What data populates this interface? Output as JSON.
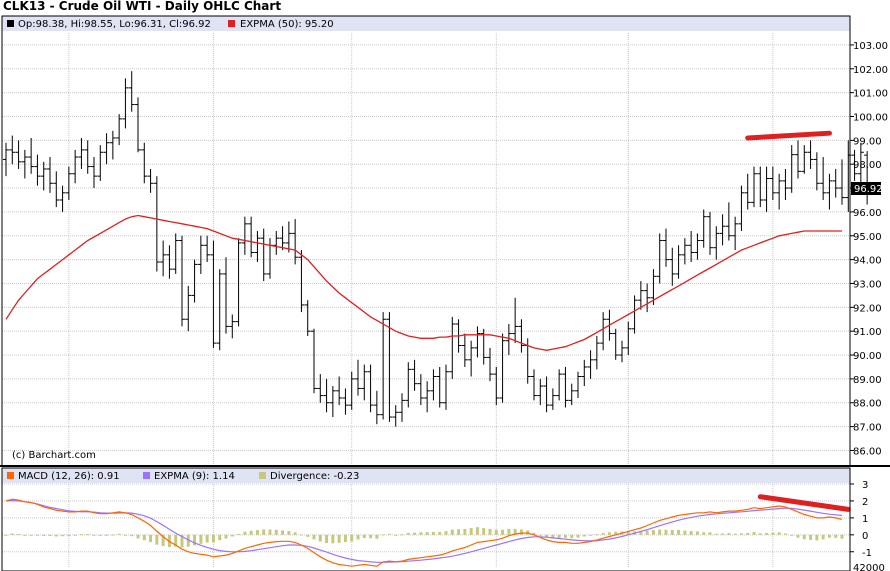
{
  "chart_data": [
    {
      "type": "ohlc",
      "title": "CLK13 - Crude Oil WTI - Daily OHLC Chart",
      "ohlc_label": "Op:98.38, Hi:98.55, Lo:96.31, Cl:96.92",
      "expma_label": "EXPMA (50): 95.20",
      "copyright": "(c) Barchart.com",
      "last_price_label": "96.92",
      "last_close": 96.92,
      "ylim": [
        85.6,
        103.5
      ],
      "y_ticks": [
        "86.00",
        "87.00",
        "88.00",
        "89.00",
        "90.00",
        "91.00",
        "92.00",
        "93.00",
        "94.00",
        "95.00",
        "96.00",
        "97.00",
        "98.00",
        "99.00",
        "100.00",
        "101.00",
        "102.00",
        "103.00"
      ],
      "grid": true,
      "n_bars": 134,
      "x_gridlines_at_bar": [
        10,
        33,
        55,
        78,
        99,
        122
      ],
      "bars": [
        [
          98.2,
          98.9,
          97.5,
          98.6
        ],
        [
          98.6,
          99.2,
          98.0,
          98.5
        ],
        [
          98.5,
          99.0,
          97.8,
          98.1
        ],
        [
          98.1,
          98.6,
          97.4,
          98.3
        ],
        [
          98.3,
          99.1,
          97.6,
          97.9
        ],
        [
          97.9,
          98.4,
          97.1,
          97.5
        ],
        [
          97.5,
          98.1,
          96.9,
          97.8
        ],
        [
          97.8,
          98.3,
          96.8,
          97.2
        ],
        [
          97.2,
          97.7,
          96.2,
          96.5
        ],
        [
          96.5,
          97.1,
          96.0,
          96.8
        ],
        [
          96.8,
          97.9,
          96.5,
          97.6
        ],
        [
          97.6,
          98.6,
          97.2,
          98.3
        ],
        [
          98.3,
          99.1,
          97.8,
          98.6
        ],
        [
          98.6,
          99.0,
          97.6,
          97.9
        ],
        [
          97.9,
          98.3,
          97.0,
          97.5
        ],
        [
          97.5,
          98.8,
          97.3,
          98.5
        ],
        [
          98.5,
          99.3,
          98.0,
          98.9
        ],
        [
          98.9,
          99.4,
          98.2,
          99.1
        ],
        [
          99.1,
          100.1,
          98.8,
          99.9
        ],
        [
          99.9,
          101.6,
          99.5,
          101.2
        ],
        [
          101.2,
          101.9,
          100.2,
          100.5
        ],
        [
          100.5,
          100.8,
          98.5,
          98.6
        ],
        [
          98.6,
          98.9,
          97.2,
          97.5
        ],
        [
          97.5,
          97.8,
          96.8,
          97.2
        ],
        [
          97.2,
          97.5,
          93.5,
          93.9
        ],
        [
          93.9,
          94.8,
          93.3,
          94.2
        ],
        [
          94.2,
          94.6,
          93.2,
          93.6
        ],
        [
          93.6,
          95.1,
          93.4,
          94.8
        ],
        [
          94.8,
          95.0,
          91.2,
          91.5
        ],
        [
          91.5,
          92.9,
          91.0,
          92.5
        ],
        [
          92.5,
          94.0,
          92.2,
          93.8
        ],
        [
          93.8,
          95.0,
          93.4,
          94.6
        ],
        [
          94.6,
          95.0,
          93.9,
          94.2
        ],
        [
          94.2,
          94.8,
          90.3,
          90.5
        ],
        [
          90.5,
          93.6,
          90.2,
          93.4
        ],
        [
          93.4,
          94.1,
          90.9,
          91.2
        ],
        [
          91.2,
          91.7,
          90.7,
          91.4
        ],
        [
          91.4,
          94.9,
          91.2,
          94.7
        ],
        [
          94.7,
          95.8,
          94.2,
          95.5
        ],
        [
          95.5,
          95.8,
          94.1,
          94.3
        ],
        [
          94.3,
          95.2,
          93.9,
          94.9
        ],
        [
          94.9,
          95.3,
          93.1,
          93.4
        ],
        [
          93.4,
          94.9,
          93.2,
          94.6
        ],
        [
          94.6,
          95.2,
          94.2,
          94.9
        ],
        [
          94.9,
          95.4,
          94.4,
          94.7
        ],
        [
          94.7,
          95.6,
          94.3,
          95.1
        ],
        [
          95.1,
          95.7,
          93.8,
          94.1
        ],
        [
          94.1,
          94.4,
          91.8,
          92.1
        ],
        [
          92.1,
          92.3,
          90.8,
          91.0
        ],
        [
          91.0,
          91.1,
          88.4,
          88.6
        ],
        [
          88.6,
          89.2,
          88.0,
          88.3
        ],
        [
          88.3,
          89.0,
          87.6,
          88.0
        ],
        [
          88.0,
          88.7,
          87.4,
          88.5
        ],
        [
          88.5,
          89.1,
          87.9,
          88.2
        ],
        [
          88.2,
          88.6,
          87.5,
          87.9
        ],
        [
          87.9,
          89.3,
          87.7,
          89.0
        ],
        [
          89.0,
          89.8,
          88.3,
          88.6
        ],
        [
          88.6,
          89.6,
          88.1,
          89.3
        ],
        [
          89.3,
          89.6,
          87.6,
          87.9
        ],
        [
          87.9,
          88.5,
          87.1,
          87.5
        ],
        [
          87.5,
          91.8,
          87.3,
          91.5
        ],
        [
          91.5,
          91.8,
          87.2,
          87.4
        ],
        [
          87.4,
          87.9,
          87.0,
          87.6
        ],
        [
          87.6,
          88.4,
          87.2,
          88.1
        ],
        [
          88.1,
          89.7,
          87.8,
          89.4
        ],
        [
          89.4,
          89.8,
          88.5,
          88.8
        ],
        [
          88.8,
          89.2,
          87.9,
          88.2
        ],
        [
          88.2,
          88.9,
          87.6,
          88.5
        ],
        [
          88.5,
          89.4,
          88.1,
          89.1
        ],
        [
          89.1,
          89.5,
          87.8,
          88.0
        ],
        [
          88.0,
          89.6,
          87.7,
          89.3
        ],
        [
          89.3,
          91.6,
          89.0,
          91.3
        ],
        [
          91.3,
          91.5,
          90.1,
          90.4
        ],
        [
          90.4,
          90.9,
          89.5,
          89.8
        ],
        [
          89.8,
          90.6,
          89.1,
          90.3
        ],
        [
          90.3,
          91.2,
          89.9,
          90.9
        ],
        [
          90.9,
          91.1,
          89.6,
          89.9
        ],
        [
          89.9,
          90.3,
          88.9,
          89.2
        ],
        [
          89.2,
          89.5,
          87.9,
          88.2
        ],
        [
          88.2,
          90.9,
          88.0,
          90.6
        ],
        [
          90.6,
          91.3,
          90.0,
          90.9
        ],
        [
          90.9,
          92.4,
          90.5,
          91.2
        ],
        [
          91.2,
          91.5,
          90.1,
          90.4
        ],
        [
          90.4,
          90.7,
          88.8,
          89.1
        ],
        [
          89.1,
          89.4,
          88.1,
          88.3
        ],
        [
          88.3,
          89.0,
          87.9,
          88.7
        ],
        [
          88.7,
          89.1,
          87.6,
          87.9
        ],
        [
          87.9,
          88.6,
          87.7,
          88.3
        ],
        [
          88.3,
          89.4,
          88.1,
          89.2
        ],
        [
          89.2,
          89.5,
          87.8,
          88.1
        ],
        [
          88.1,
          88.8,
          87.9,
          88.5
        ],
        [
          88.5,
          89.3,
          88.2,
          89.1
        ],
        [
          89.1,
          89.8,
          88.7,
          89.5
        ],
        [
          89.5,
          90.2,
          89.0,
          89.8
        ],
        [
          89.8,
          90.8,
          89.4,
          90.5
        ],
        [
          90.5,
          91.8,
          90.2,
          91.5
        ],
        [
          91.5,
          91.9,
          90.6,
          90.9
        ],
        [
          90.9,
          91.1,
          89.8,
          90.0
        ],
        [
          90.0,
          90.6,
          89.7,
          90.3
        ],
        [
          90.3,
          91.4,
          90.0,
          91.1
        ],
        [
          91.1,
          92.5,
          90.9,
          92.3
        ],
        [
          92.3,
          93.1,
          91.9,
          92.7
        ],
        [
          92.7,
          93.0,
          91.8,
          92.4
        ],
        [
          92.4,
          93.6,
          92.1,
          93.3
        ],
        [
          93.3,
          95.1,
          93.0,
          94.8
        ],
        [
          94.8,
          95.3,
          93.7,
          94.0
        ],
        [
          94.0,
          94.5,
          92.9,
          93.4
        ],
        [
          93.4,
          94.6,
          93.2,
          94.2
        ],
        [
          94.2,
          94.9,
          93.8,
          94.6
        ],
        [
          94.6,
          95.2,
          93.9,
          94.3
        ],
        [
          94.3,
          95.1,
          94.0,
          94.8
        ],
        [
          94.8,
          96.1,
          94.5,
          95.8
        ],
        [
          95.8,
          96.0,
          94.2,
          94.5
        ],
        [
          94.5,
          95.4,
          94.0,
          95.1
        ],
        [
          95.1,
          95.9,
          94.6,
          95.4
        ],
        [
          95.4,
          96.4,
          94.8,
          95.0
        ],
        [
          95.0,
          95.8,
          94.4,
          95.5
        ],
        [
          95.5,
          97.1,
          95.2,
          96.8
        ],
        [
          96.8,
          97.6,
          96.1,
          96.4
        ],
        [
          96.4,
          97.9,
          96.2,
          97.6
        ],
        [
          97.6,
          97.9,
          96.2,
          96.5
        ],
        [
          96.5,
          97.9,
          96.0,
          97.4
        ],
        [
          97.4,
          97.9,
          96.5,
          96.8
        ],
        [
          96.8,
          97.6,
          96.1,
          97.3
        ],
        [
          97.3,
          97.8,
          96.5,
          97.0
        ],
        [
          97.0,
          98.8,
          96.8,
          98.4
        ],
        [
          98.4,
          99.0,
          97.4,
          97.7
        ],
        [
          97.7,
          98.8,
          97.6,
          98.5
        ],
        [
          98.5,
          99.0,
          97.8,
          98.2
        ],
        [
          98.2,
          98.5,
          96.9,
          97.2
        ],
        [
          97.2,
          98.3,
          96.5,
          96.8
        ],
        [
          96.8,
          97.6,
          96.1,
          97.3
        ],
        [
          97.3,
          97.8,
          96.6,
          97.0
        ],
        [
          97.0,
          98.2,
          96.3,
          96.6
        ],
        [
          96.6,
          99.0,
          96.0,
          98.38
        ],
        [
          98.38,
          98.6,
          97.3,
          97.6
        ],
        [
          97.6,
          98.9,
          97.2,
          98.5
        ],
        [
          98.38,
          98.55,
          96.31,
          96.92
        ]
      ],
      "expma50": [
        91.5,
        91.9,
        92.3,
        92.6,
        92.9,
        93.2,
        93.4,
        93.6,
        93.8,
        94.0,
        94.2,
        94.4,
        94.6,
        94.8,
        94.95,
        95.1,
        95.25,
        95.4,
        95.55,
        95.7,
        95.8,
        95.85,
        95.8,
        95.75,
        95.7,
        95.65,
        95.6,
        95.55,
        95.5,
        95.45,
        95.4,
        95.35,
        95.3,
        95.2,
        95.1,
        95.0,
        94.9,
        94.85,
        94.8,
        94.75,
        94.7,
        94.65,
        94.6,
        94.55,
        94.5,
        94.45,
        94.4,
        94.2,
        94.0,
        93.7,
        93.4,
        93.1,
        92.85,
        92.6,
        92.4,
        92.2,
        92.0,
        91.8,
        91.6,
        91.45,
        91.3,
        91.15,
        91.0,
        90.9,
        90.8,
        90.75,
        90.7,
        90.7,
        90.7,
        90.75,
        90.75,
        90.8,
        90.8,
        90.85,
        90.85,
        90.85,
        90.85,
        90.85,
        90.8,
        90.75,
        90.7,
        90.6,
        90.5,
        90.4,
        90.3,
        90.25,
        90.2,
        90.25,
        90.3,
        90.35,
        90.45,
        90.55,
        90.65,
        90.8,
        90.95,
        91.1,
        91.25,
        91.4,
        91.55,
        91.7,
        91.85,
        92.0,
        92.15,
        92.3,
        92.45,
        92.6,
        92.75,
        92.9,
        93.05,
        93.2,
        93.35,
        93.5,
        93.65,
        93.8,
        93.95,
        94.1,
        94.25,
        94.4,
        94.5,
        94.6,
        94.7,
        94.8,
        94.9,
        95.0,
        95.05,
        95.1,
        95.15,
        95.2,
        95.2,
        95.2,
        95.2,
        95.2,
        95.2,
        95.2
      ],
      "annotation_resistance": {
        "x_bar": [
          118,
          131
        ],
        "y": [
          99.1,
          99.3
        ],
        "color": "#e02020"
      }
    },
    {
      "type": "line",
      "macd_label": "MACD (12, 26): 0.91",
      "signal_label": "EXPMA (9): 1.14",
      "divergence_label": "Divergence: -0.23",
      "ylim": [
        -1.9,
        3.0
      ],
      "y_ticks": [
        "-1",
        "0",
        "1",
        "2",
        "3"
      ],
      "bottom_clipped_label": "42000",
      "colors": {
        "macd": "#ff6600",
        "signal": "#9a73ff",
        "divergence": "#c8c87d",
        "annotation": "#e02020"
      },
      "macd": [
        2.0,
        2.1,
        2.05,
        1.95,
        1.9,
        1.8,
        1.65,
        1.55,
        1.45,
        1.4,
        1.35,
        1.35,
        1.4,
        1.4,
        1.3,
        1.25,
        1.25,
        1.3,
        1.35,
        1.3,
        1.2,
        1.0,
        0.8,
        0.55,
        0.2,
        -0.1,
        -0.4,
        -0.6,
        -0.85,
        -1.0,
        -1.1,
        -1.15,
        -1.2,
        -1.3,
        -1.25,
        -1.2,
        -1.1,
        -0.95,
        -0.8,
        -0.7,
        -0.6,
        -0.5,
        -0.45,
        -0.4,
        -0.38,
        -0.38,
        -0.45,
        -0.6,
        -0.8,
        -1.05,
        -1.3,
        -1.5,
        -1.65,
        -1.75,
        -1.8,
        -1.85,
        -1.8,
        -1.75,
        -1.8,
        -1.85,
        -1.6,
        -1.55,
        -1.6,
        -1.55,
        -1.45,
        -1.4,
        -1.35,
        -1.3,
        -1.25,
        -1.2,
        -1.1,
        -0.95,
        -0.85,
        -0.75,
        -0.6,
        -0.45,
        -0.4,
        -0.35,
        -0.3,
        -0.2,
        -0.05,
        0.05,
        0.1,
        0.1,
        0.0,
        -0.15,
        -0.3,
        -0.4,
        -0.45,
        -0.45,
        -0.5,
        -0.5,
        -0.45,
        -0.4,
        -0.3,
        -0.2,
        -0.1,
        0.0,
        0.1,
        0.2,
        0.3,
        0.4,
        0.55,
        0.7,
        0.85,
        0.95,
        1.05,
        1.15,
        1.2,
        1.25,
        1.3,
        1.3,
        1.35,
        1.3,
        1.35,
        1.4,
        1.4,
        1.45,
        1.5,
        1.6,
        1.55,
        1.6,
        1.65,
        1.7,
        1.65,
        1.5,
        1.35,
        1.2,
        1.1,
        1.0,
        1.0,
        1.05,
        1.0,
        0.91
      ],
      "signal": [
        2.0,
        2.02,
        2.0,
        1.95,
        1.9,
        1.82,
        1.72,
        1.62,
        1.55,
        1.48,
        1.42,
        1.38,
        1.36,
        1.36,
        1.34,
        1.3,
        1.28,
        1.28,
        1.29,
        1.3,
        1.28,
        1.22,
        1.12,
        0.98,
        0.78,
        0.56,
        0.32,
        0.1,
        -0.1,
        -0.3,
        -0.48,
        -0.62,
        -0.74,
        -0.85,
        -0.93,
        -0.98,
        -1.0,
        -1.0,
        -0.98,
        -0.94,
        -0.88,
        -0.82,
        -0.76,
        -0.7,
        -0.64,
        -0.6,
        -0.6,
        -0.62,
        -0.68,
        -0.78,
        -0.9,
        -1.02,
        -1.15,
        -1.27,
        -1.37,
        -1.45,
        -1.52,
        -1.56,
        -1.6,
        -1.62,
        -1.62,
        -1.61,
        -1.6,
        -1.58,
        -1.56,
        -1.53,
        -1.5,
        -1.46,
        -1.42,
        -1.37,
        -1.32,
        -1.26,
        -1.18,
        -1.1,
        -1.0,
        -0.9,
        -0.8,
        -0.7,
        -0.6,
        -0.5,
        -0.4,
        -0.3,
        -0.22,
        -0.16,
        -0.12,
        -0.12,
        -0.14,
        -0.18,
        -0.22,
        -0.26,
        -0.3,
        -0.33,
        -0.35,
        -0.36,
        -0.34,
        -0.3,
        -0.25,
        -0.18,
        -0.1,
        0.0,
        0.1,
        0.2,
        0.3,
        0.42,
        0.54,
        0.65,
        0.76,
        0.86,
        0.95,
        1.03,
        1.1,
        1.15,
        1.2,
        1.24,
        1.27,
        1.3,
        1.33,
        1.36,
        1.39,
        1.43,
        1.46,
        1.49,
        1.52,
        1.55,
        1.57,
        1.56,
        1.52,
        1.46,
        1.4,
        1.33,
        1.27,
        1.22,
        1.18,
        1.14
      ],
      "annotation_divergence": {
        "x_bar": [
          120,
          134
        ],
        "y": [
          2.25,
          1.5
        ],
        "color": "#e02020"
      }
    }
  ]
}
